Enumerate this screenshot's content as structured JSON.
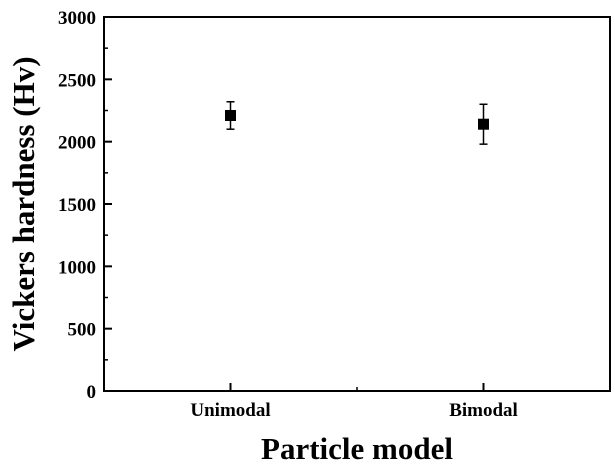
{
  "chart_data": {
    "type": "scatter",
    "title": "",
    "xlabel": "Particle model",
    "ylabel": "Vickers hardness (Hv)",
    "categories": [
      "Unimodal",
      "Bimodal"
    ],
    "series": [
      {
        "values": [
          2210,
          2140
        ],
        "error_plus": [
          110,
          160
        ],
        "error_minus": [
          110,
          160
        ]
      }
    ],
    "ylim": [
      0,
      3000
    ],
    "yticks": [
      0,
      500,
      1000,
      1500,
      2000,
      2500,
      3000
    ],
    "yticks_minor": [
      250,
      750,
      1250,
      1750,
      2250,
      2750
    ],
    "grid": false,
    "legend": "none",
    "marker": "square",
    "marker_color": "#000000"
  }
}
